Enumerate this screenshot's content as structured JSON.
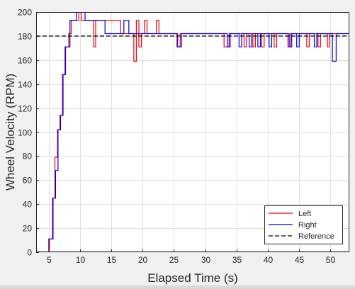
{
  "chart_data": {
    "type": "line",
    "title": "",
    "xlabel": "Elapsed Time (s)",
    "ylabel": "Wheel Velocity (RPM)",
    "xlim": [
      3,
      53
    ],
    "ylim": [
      0,
      200
    ],
    "xticks": [
      5,
      10,
      15,
      20,
      25,
      30,
      35,
      40,
      45,
      50
    ],
    "yticks": [
      0,
      20,
      40,
      60,
      80,
      100,
      120,
      140,
      160,
      180,
      200
    ],
    "grid": true,
    "legend_position": "bottom-right",
    "series": [
      {
        "name": "Left",
        "color": "#e8000b",
        "style": "solid",
        "points": [
          [
            3,
            0
          ],
          [
            5.0,
            0
          ],
          [
            5.0,
            11
          ],
          [
            5.6,
            11
          ],
          [
            5.6,
            45
          ],
          [
            6.0,
            45
          ],
          [
            6.0,
            79
          ],
          [
            6.4,
            79
          ],
          [
            6.4,
            102
          ],
          [
            6.8,
            102
          ],
          [
            6.8,
            114
          ],
          [
            7.2,
            114
          ],
          [
            7.2,
            148
          ],
          [
            7.6,
            148
          ],
          [
            7.6,
            171
          ],
          [
            8.2,
            171
          ],
          [
            8.2,
            182
          ],
          [
            8.6,
            182
          ],
          [
            8.6,
            193
          ],
          [
            9.8,
            193
          ],
          [
            9.8,
            200
          ],
          [
            10.2,
            200
          ],
          [
            10.2,
            193
          ],
          [
            12.2,
            193
          ],
          [
            12.2,
            171
          ],
          [
            12.5,
            171
          ],
          [
            12.5,
            193
          ],
          [
            16.5,
            193
          ],
          [
            16.5,
            182
          ],
          [
            18.6,
            182
          ],
          [
            18.6,
            159
          ],
          [
            19.0,
            159
          ],
          [
            19.0,
            193
          ],
          [
            19.4,
            193
          ],
          [
            19.4,
            171
          ],
          [
            19.8,
            171
          ],
          [
            19.8,
            182
          ],
          [
            20.3,
            182
          ],
          [
            20.3,
            193
          ],
          [
            20.7,
            193
          ],
          [
            20.7,
            182
          ],
          [
            22.2,
            182
          ],
          [
            22.2,
            193
          ],
          [
            22.6,
            193
          ],
          [
            22.6,
            182
          ],
          [
            25.6,
            182
          ],
          [
            25.6,
            171
          ],
          [
            26.0,
            171
          ],
          [
            26.0,
            182
          ],
          [
            33.0,
            182
          ],
          [
            33.0,
            171
          ],
          [
            34.0,
            171
          ],
          [
            34.0,
            182
          ],
          [
            36.2,
            182
          ],
          [
            36.2,
            171
          ],
          [
            36.6,
            171
          ],
          [
            36.6,
            182
          ],
          [
            37.6,
            182
          ],
          [
            37.6,
            171
          ],
          [
            38.0,
            171
          ],
          [
            38.0,
            182
          ],
          [
            39.0,
            182
          ],
          [
            39.0,
            171
          ],
          [
            39.4,
            171
          ],
          [
            39.4,
            182
          ],
          [
            41.0,
            182
          ],
          [
            41.0,
            171
          ],
          [
            41.4,
            171
          ],
          [
            41.4,
            182
          ],
          [
            43.2,
            182
          ],
          [
            43.2,
            171
          ],
          [
            43.6,
            171
          ],
          [
            43.6,
            182
          ],
          [
            46.2,
            182
          ],
          [
            46.2,
            171
          ],
          [
            46.6,
            171
          ],
          [
            46.6,
            182
          ],
          [
            48.0,
            182
          ],
          [
            48.0,
            171
          ],
          [
            48.4,
            171
          ],
          [
            48.4,
            182
          ],
          [
            49.5,
            182
          ],
          [
            49.5,
            171
          ],
          [
            49.8,
            171
          ],
          [
            49.8,
            182
          ],
          [
            53,
            182
          ]
        ]
      },
      {
        "name": "Right",
        "color": "#0000e6",
        "style": "solid",
        "points": [
          [
            3,
            0
          ],
          [
            5.1,
            0
          ],
          [
            5.1,
            11
          ],
          [
            5.7,
            11
          ],
          [
            5.7,
            45
          ],
          [
            6.1,
            45
          ],
          [
            6.1,
            68
          ],
          [
            6.5,
            68
          ],
          [
            6.5,
            102
          ],
          [
            6.9,
            102
          ],
          [
            6.9,
            114
          ],
          [
            7.3,
            114
          ],
          [
            7.3,
            148
          ],
          [
            7.7,
            148
          ],
          [
            7.7,
            171
          ],
          [
            8.4,
            171
          ],
          [
            8.4,
            193
          ],
          [
            9.4,
            193
          ],
          [
            9.4,
            200
          ],
          [
            10.8,
            200
          ],
          [
            10.8,
            193
          ],
          [
            14.0,
            193
          ],
          [
            14.0,
            182
          ],
          [
            17.0,
            182
          ],
          [
            17.0,
            193
          ],
          [
            17.8,
            193
          ],
          [
            17.8,
            182
          ],
          [
            25.5,
            182
          ],
          [
            25.5,
            171
          ],
          [
            26.2,
            171
          ],
          [
            26.2,
            182
          ],
          [
            33.5,
            182
          ],
          [
            33.5,
            171
          ],
          [
            33.8,
            171
          ],
          [
            33.8,
            182
          ],
          [
            35.4,
            182
          ],
          [
            35.4,
            171
          ],
          [
            35.8,
            171
          ],
          [
            35.8,
            182
          ],
          [
            37.0,
            182
          ],
          [
            37.0,
            171
          ],
          [
            37.4,
            171
          ],
          [
            37.4,
            182
          ],
          [
            38.4,
            182
          ],
          [
            38.4,
            171
          ],
          [
            38.8,
            171
          ],
          [
            38.8,
            182
          ],
          [
            40.2,
            182
          ],
          [
            40.2,
            171
          ],
          [
            40.6,
            171
          ],
          [
            40.6,
            182
          ],
          [
            43.4,
            182
          ],
          [
            43.4,
            171
          ],
          [
            43.8,
            171
          ],
          [
            43.8,
            182
          ],
          [
            44.6,
            182
          ],
          [
            44.6,
            171
          ],
          [
            45.0,
            171
          ],
          [
            45.0,
            182
          ],
          [
            47.4,
            182
          ],
          [
            47.4,
            171
          ],
          [
            47.8,
            171
          ],
          [
            47.8,
            182
          ],
          [
            50.3,
            182
          ],
          [
            50.3,
            159
          ],
          [
            50.9,
            159
          ],
          [
            50.9,
            182
          ],
          [
            53,
            182
          ]
        ]
      },
      {
        "name": "Reference",
        "color": "#000000",
        "style": "dashed",
        "points": [
          [
            3,
            180
          ],
          [
            53,
            180
          ]
        ]
      }
    ]
  },
  "colors": {
    "figure_background": "#f0f0f0",
    "axes_background": "#ffffff",
    "grid": "#dfdfdf",
    "axis": "#262626"
  }
}
